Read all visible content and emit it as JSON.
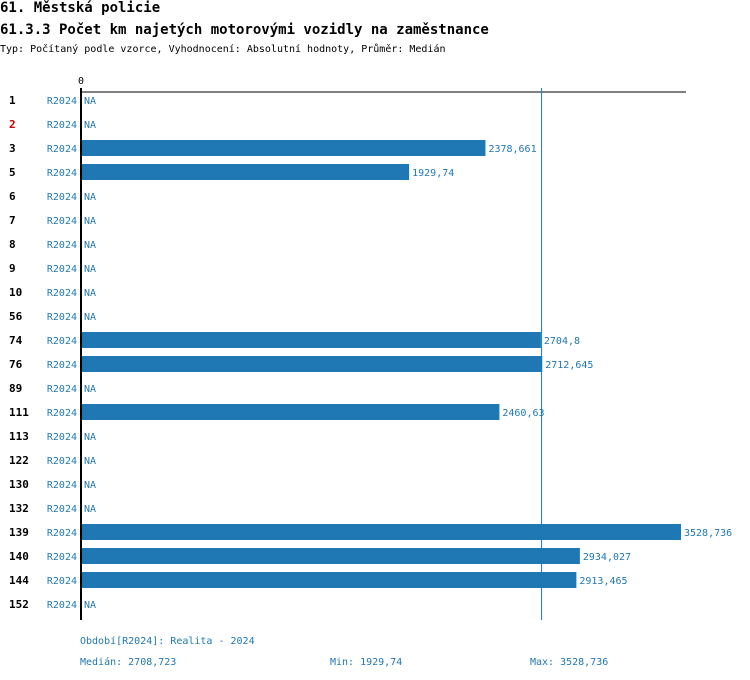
{
  "header": {
    "title": "61. Městská policie",
    "subtitle": "61.3.3 Počet km najetých motorovými vozidly na zaměstnance",
    "meta": "Typ: Počítaný podle vzorce, Vyhodnocení: Absolutní hodnoty, Průměr: Medián"
  },
  "chart_data": {
    "type": "bar",
    "orientation": "horizontal",
    "axis_zero_label": "0",
    "period_label": "R2024",
    "na_label": "NA",
    "xlim": [
      0,
      3528.736
    ],
    "median_value": 2708.723,
    "grid": false,
    "colors": {
      "bar": "#1f77b4",
      "text": "#1f77b4",
      "highlight": "#cc0000"
    },
    "categories": [
      "1",
      "2",
      "3",
      "5",
      "6",
      "7",
      "8",
      "9",
      "10",
      "56",
      "74",
      "76",
      "89",
      "111",
      "113",
      "122",
      "130",
      "132",
      "139",
      "140",
      "144",
      "152"
    ],
    "highlighted_category": "2",
    "values": [
      null,
      null,
      2378.661,
      1929.74,
      null,
      null,
      null,
      null,
      null,
      null,
      2704.8,
      2712.645,
      null,
      2460.63,
      null,
      null,
      null,
      null,
      3528.736,
      2934.027,
      2913.465,
      null
    ],
    "value_labels": [
      "NA",
      "NA",
      "2378,661",
      "1929,74",
      "NA",
      "NA",
      "NA",
      "NA",
      "NA",
      "NA",
      "2704,8",
      "2712,645",
      "NA",
      "2460,63",
      "NA",
      "NA",
      "NA",
      "NA",
      "3528,736",
      "2934,027",
      "2913,465",
      "NA"
    ]
  },
  "footer": {
    "period": "Období[R2024]: Realita - 2024",
    "median": "Medián: 2708,723",
    "min": "Min: 1929,74",
    "max": "Max: 3528,736"
  }
}
